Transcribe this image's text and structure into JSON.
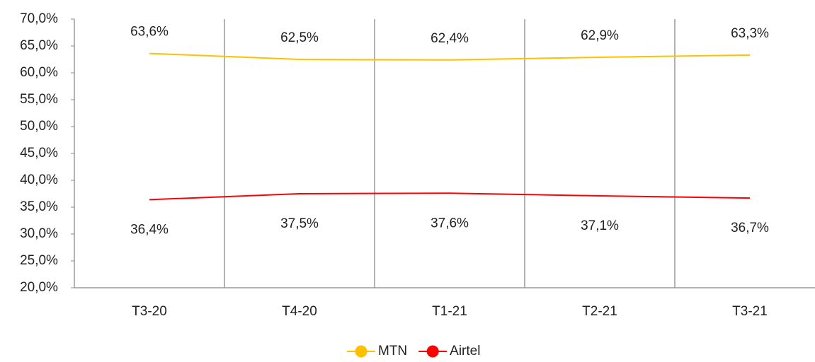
{
  "chart_data": {
    "type": "line",
    "categories": [
      "T3-20",
      "T4-20",
      "T1-21",
      "T2-21",
      "T3-21"
    ],
    "series": [
      {
        "name": "MTN",
        "color": "#ffc000",
        "values": [
          63.6,
          62.5,
          62.4,
          62.9,
          63.3
        ],
        "value_labels": [
          "63,6%",
          "62,5%",
          "62,4%",
          "62,9%",
          "63,3%"
        ]
      },
      {
        "name": "Airtel",
        "color": "#ff0000",
        "values": [
          36.4,
          37.5,
          37.6,
          37.1,
          36.7
        ],
        "value_labels": [
          "36,4%",
          "37,5%",
          "37,6%",
          "37,1%",
          "36,7%"
        ]
      }
    ],
    "ylim": [
      20,
      70
    ],
    "yticks": [
      {
        "value": 20,
        "label": "20,0%"
      },
      {
        "value": 25,
        "label": "25,0%"
      },
      {
        "value": 30,
        "label": "30,0%"
      },
      {
        "value": 35,
        "label": "35,0%"
      },
      {
        "value": 40,
        "label": "40,0%"
      },
      {
        "value": 45,
        "label": "45,0%"
      },
      {
        "value": 50,
        "label": "50,0%"
      },
      {
        "value": 55,
        "label": "55,0%"
      },
      {
        "value": 60,
        "label": "60,0%"
      },
      {
        "value": 65,
        "label": "65,0%"
      },
      {
        "value": 70,
        "label": "70,0%"
      }
    ],
    "grid": false,
    "legend": "bottom"
  }
}
